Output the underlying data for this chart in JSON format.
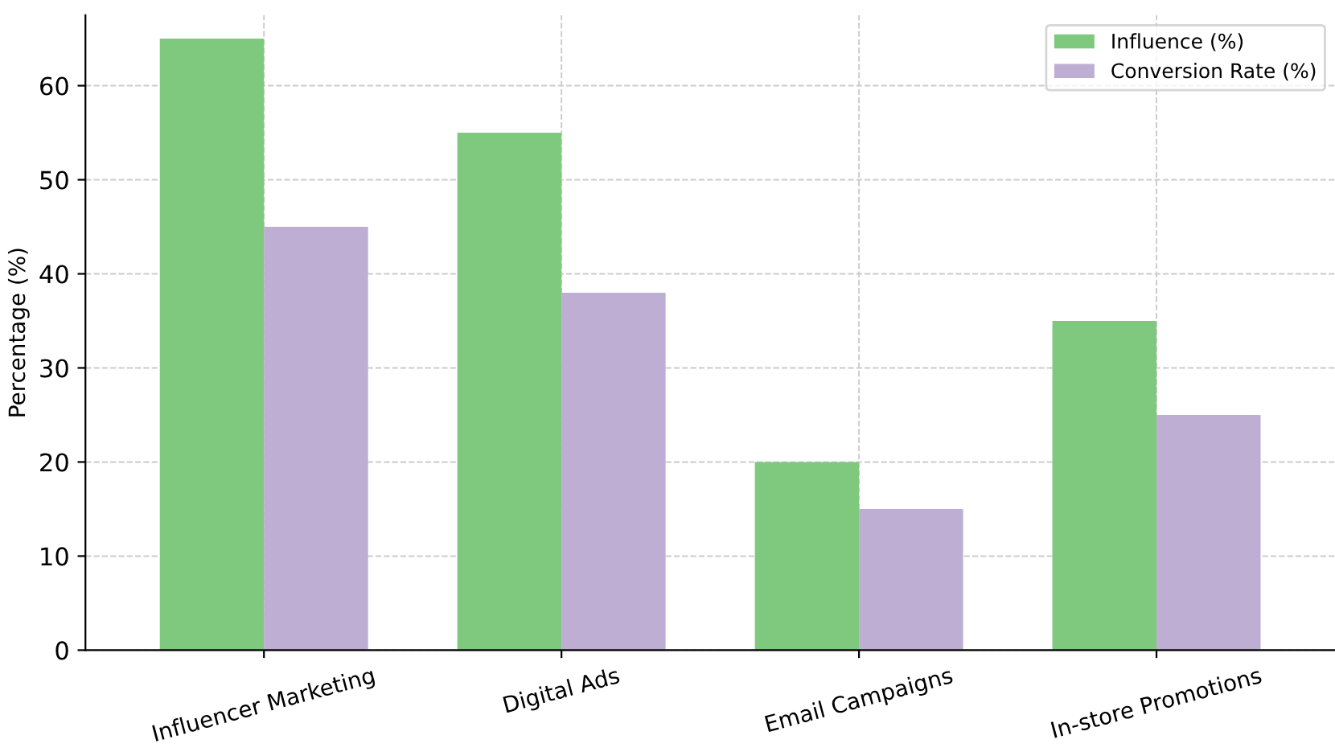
{
  "chart_data": {
    "type": "bar",
    "ylabel": "Percentage (%)",
    "categories": [
      "Influencer Marketing",
      "Digital Ads",
      "Email Campaigns",
      "In-store Promotions"
    ],
    "series": [
      {
        "name": "Influence (%)",
        "color": "#7fc97f",
        "values": [
          65,
          55,
          20,
          35
        ]
      },
      {
        "name": "Conversion Rate (%)",
        "color": "#beaed4",
        "values": [
          45,
          38,
          15,
          25
        ]
      }
    ],
    "ylim": [
      0,
      67.5
    ],
    "yticks": [
      0,
      10,
      20,
      30,
      40,
      50,
      60
    ],
    "grid": true,
    "legend": "top right"
  }
}
